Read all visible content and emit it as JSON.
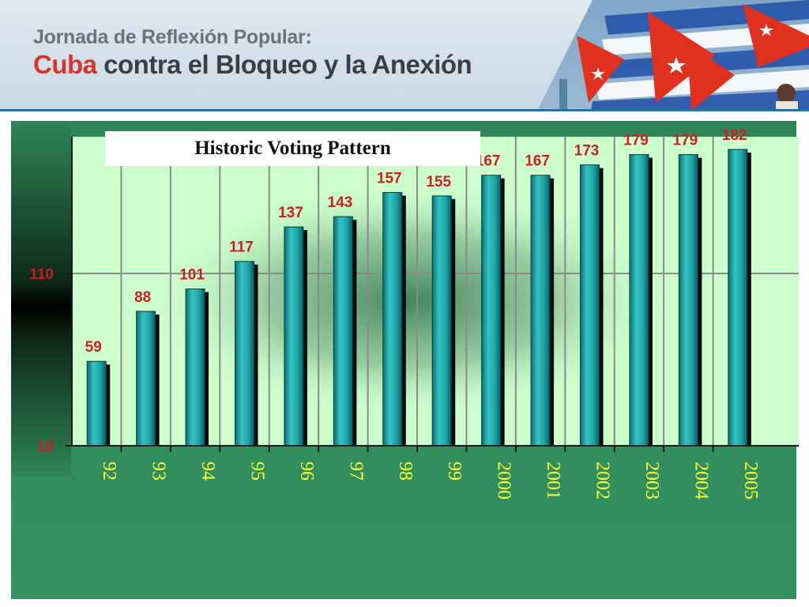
{
  "header": {
    "subtitle": "Jornada de Reflexión Popular:",
    "title_highlight": "Cuba",
    "title_rest": " contra el Bloqueo y la Anexión"
  },
  "colors": {
    "bar": "#1fa3a6",
    "bar_shadow": "#0a0a0a",
    "plot_bg": "#ccffcc",
    "panel": "#2e8b5f",
    "value_labels": "#cc1f1f",
    "category_labels": "#ffff33",
    "flag_red": "#e0301e",
    "flag_blue": "#1e4fa8"
  },
  "chart_data": {
    "type": "bar",
    "title": "Historic Voting Pattern",
    "categories": [
      "92",
      "93",
      "94",
      "95",
      "96",
      "97",
      "98",
      "99",
      "2000",
      "2001",
      "2002",
      "2003",
      "2004",
      "2005"
    ],
    "values": [
      59,
      88,
      101,
      117,
      137,
      143,
      157,
      155,
      167,
      167,
      173,
      179,
      179,
      182
    ],
    "value_labels": [
      "59",
      "88",
      "101",
      "117",
      "137",
      "143",
      "157",
      "155",
      "167",
      "167",
      "173",
      "179",
      "179",
      "182"
    ],
    "y_ticks": [
      10,
      110
    ],
    "y_tick_labels": [
      "10",
      "110"
    ],
    "ylim": [
      10,
      190
    ],
    "grid": true,
    "xlabel": "",
    "ylabel": ""
  }
}
